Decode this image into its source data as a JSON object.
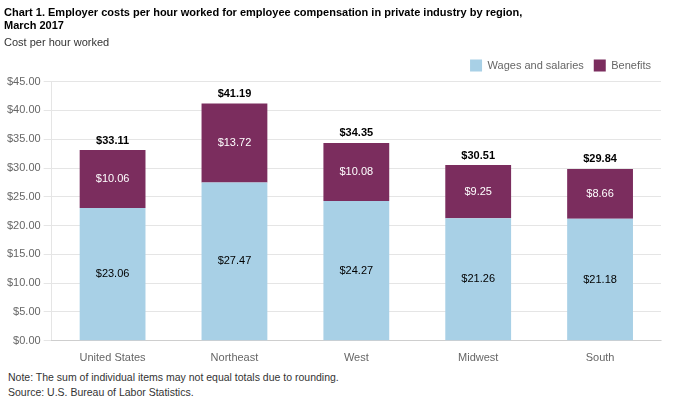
{
  "chart_data": {
    "type": "bar",
    "stacked": true,
    "title": [
      "Chart 1. Employer costs per hour worked for employee compensation in private industry by region,",
      "March 2017"
    ],
    "subtitle": "Cost per hour worked",
    "note": "Note: The sum of individual items may not equal totals due to rounding.",
    "source": "Source: U.S. Bureau of Labor Statistics.",
    "categories": [
      "United States",
      "Northeast",
      "West",
      "Midwest",
      "South"
    ],
    "series": [
      {
        "name": "Wages and salaries",
        "color": "#a8d0e6",
        "values": [
          23.06,
          27.47,
          24.27,
          21.26,
          21.18
        ],
        "value_labels": [
          "$23.06",
          "$27.47",
          "$24.27",
          "$21.26",
          "$21.18"
        ]
      },
      {
        "name": "Benefits",
        "color": "#7b2d5e",
        "values": [
          10.06,
          13.72,
          10.08,
          9.25,
          8.66
        ],
        "value_labels": [
          "$10.06",
          "$13.72",
          "$10.08",
          "$9.25",
          "$8.66"
        ]
      }
    ],
    "totals": {
      "values": [
        33.11,
        41.19,
        34.35,
        30.51,
        29.84
      ],
      "value_labels": [
        "$33.11",
        "$41.19",
        "$34.35",
        "$30.51",
        "$29.84"
      ]
    },
    "data_labels": true,
    "ylim": [
      0,
      45
    ],
    "yticks": [
      {
        "value": 0,
        "label": "$0.00"
      },
      {
        "value": 5,
        "label": "$5.00"
      },
      {
        "value": 10,
        "label": "$10.00"
      },
      {
        "value": 15,
        "label": "$15.00"
      },
      {
        "value": 20,
        "label": "$20.00"
      },
      {
        "value": 25,
        "label": "$25.00"
      },
      {
        "value": 30,
        "label": "$30.00"
      },
      {
        "value": 35,
        "label": "$35.00"
      },
      {
        "value": 40,
        "label": "$40.00"
      },
      {
        "value": 45,
        "label": "$45.00"
      }
    ],
    "grid": true,
    "legend": "upper right"
  }
}
